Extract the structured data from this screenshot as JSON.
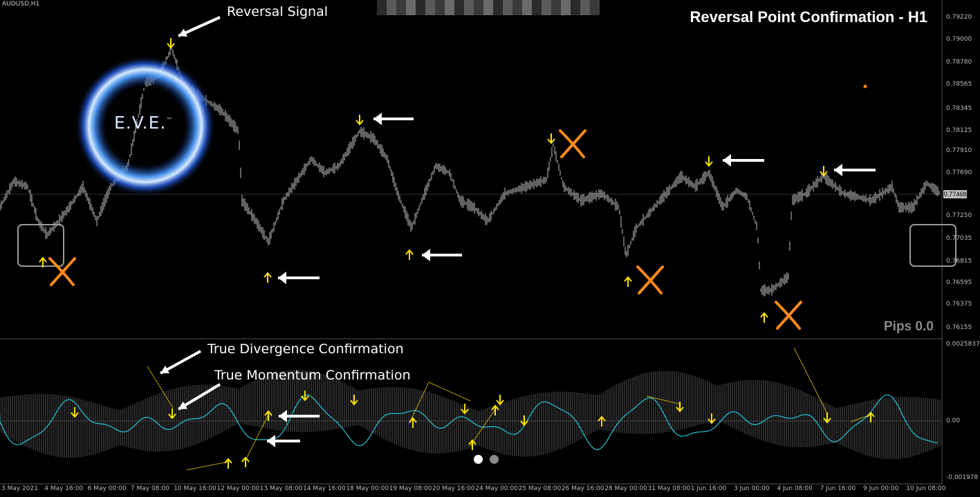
{
  "symbol": "AUDUSD,H1",
  "title": "Reversal Point Confirmation - H1",
  "logo_text": "E.V.E.",
  "logo_tm": "™",
  "annotations": {
    "reversal_signal": "Reversal Signal",
    "true_divergence": "True Divergence Confirmation",
    "true_momentum": "True Momentum Confirmation"
  },
  "pips": "Pips 0.0",
  "current_price": "0.77468",
  "price_scale": [
    "0.79220",
    "0.79000",
    "0.78780",
    "0.78565",
    "0.78345",
    "0.78125",
    "0.77910",
    "0.77690",
    "0.77250",
    "0.77035",
    "0.76815",
    "0.76595",
    "0.76375",
    "0.76155"
  ],
  "indicator_scale": [
    "0.0025837",
    "0.00",
    "-0.001978"
  ],
  "time_labels": [
    "3 May 2021",
    "4 May 16:00",
    "6 May 00:00",
    "7 May 08:00",
    "10 May 16:00",
    "12 May 00:00",
    "13 May 08:00",
    "14 May 16:00",
    "18 May 00:00",
    "19 May 08:00",
    "20 May 16:00",
    "24 May 00:00",
    "25 May 08:00",
    "26 May 16:00",
    "28 May 00:00",
    "31 May 08:00",
    "1 Jun 16:00",
    "3 Jun 00:00",
    "4 Jun 08:00",
    "7 Jun 16:00",
    "9 Jun 00:00",
    "10 Jun 08:00"
  ],
  "colors": {
    "signal_arrow": "#ffe600",
    "cross_mark": "#ff8a1c",
    "price_line": "#e8e8e8",
    "indicator_line": "#26c6da",
    "background": "#000000"
  }
}
